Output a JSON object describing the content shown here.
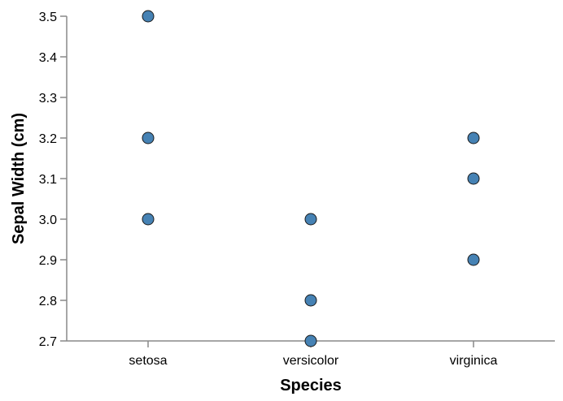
{
  "chart_data": {
    "type": "scatter",
    "title": "",
    "xlabel": "Species",
    "ylabel": "Sepal Width (cm)",
    "categories": [
      "setosa",
      "versicolor",
      "virginica"
    ],
    "ylim": [
      2.7,
      3.5
    ],
    "yticks": [
      "2.7",
      "2.8",
      "2.9",
      "3.0",
      "3.1",
      "3.2",
      "3.3",
      "3.4",
      "3.5"
    ],
    "grid": false,
    "legend": "none",
    "point_color": "#4682b4",
    "point_stroke": "#1a1a1a",
    "points": [
      {
        "x": "setosa",
        "y": 3.5
      },
      {
        "x": "setosa",
        "y": 3.2
      },
      {
        "x": "setosa",
        "y": 3.0
      },
      {
        "x": "versicolor",
        "y": 3.0
      },
      {
        "x": "versicolor",
        "y": 2.8
      },
      {
        "x": "versicolor",
        "y": 2.7
      },
      {
        "x": "virginica",
        "y": 3.2
      },
      {
        "x": "virginica",
        "y": 3.1
      },
      {
        "x": "virginica",
        "y": 2.9
      }
    ]
  }
}
